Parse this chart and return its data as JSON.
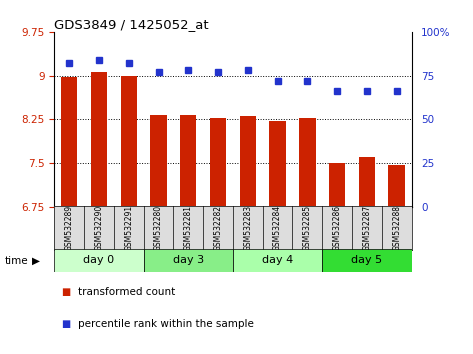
{
  "title": "GDS3849 / 1425052_at",
  "samples": [
    "GSM532289",
    "GSM532290",
    "GSM532291",
    "GSM532280",
    "GSM532281",
    "GSM532282",
    "GSM532283",
    "GSM532284",
    "GSM532285",
    "GSM532286",
    "GSM532287",
    "GSM532288"
  ],
  "bar_values": [
    8.97,
    9.06,
    9.0,
    8.32,
    8.32,
    8.27,
    8.31,
    8.22,
    8.28,
    7.5,
    7.6,
    7.47
  ],
  "percentile_values": [
    82,
    84,
    82,
    77,
    78,
    77,
    78,
    72,
    72,
    66,
    66,
    66
  ],
  "bar_color": "#cc2200",
  "percentile_color": "#2233cc",
  "ylim_left": [
    6.75,
    9.75
  ],
  "ylim_right": [
    0,
    100
  ],
  "yticks_left": [
    6.75,
    7.5,
    8.25,
    9.0,
    9.75
  ],
  "yticks_right": [
    0,
    25,
    50,
    75,
    100
  ],
  "ytick_labels_left": [
    "6.75",
    "7.5",
    "8.25",
    "9",
    "9.75"
  ],
  "ytick_labels_right": [
    "0",
    "25",
    "50",
    "75",
    "100%"
  ],
  "groups": [
    {
      "label": "day 0",
      "start": 0,
      "end": 3,
      "color": "#ccffcc"
    },
    {
      "label": "day 3",
      "start": 3,
      "end": 6,
      "color": "#88ee88"
    },
    {
      "label": "day 4",
      "start": 6,
      "end": 9,
      "color": "#aaffaa"
    },
    {
      "label": "day 5",
      "start": 9,
      "end": 12,
      "color": "#33dd33"
    }
  ],
  "legend_bar_label": "transformed count",
  "legend_pct_label": "percentile rank within the sample",
  "time_label": "time",
  "sample_box_color": "#dddddd",
  "grid_color": "#000000",
  "bg_color": "#ffffff",
  "bar_width": 0.55
}
